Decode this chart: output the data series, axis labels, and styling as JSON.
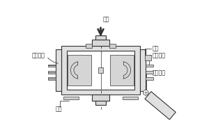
{
  "line_color": "#333333",
  "light_gray": "#cccccc",
  "mid_gray": "#aaaaaa",
  "bg": "#f5f5f5",
  "labels": {
    "top": "原料",
    "left": "水冷夹套",
    "bottom_left": "原料",
    "inner_core": "内芯",
    "rotor": "旋转转子",
    "outlet": "出料挡板"
  },
  "fig_width": 3.0,
  "fig_height": 2.0,
  "dpi": 100
}
